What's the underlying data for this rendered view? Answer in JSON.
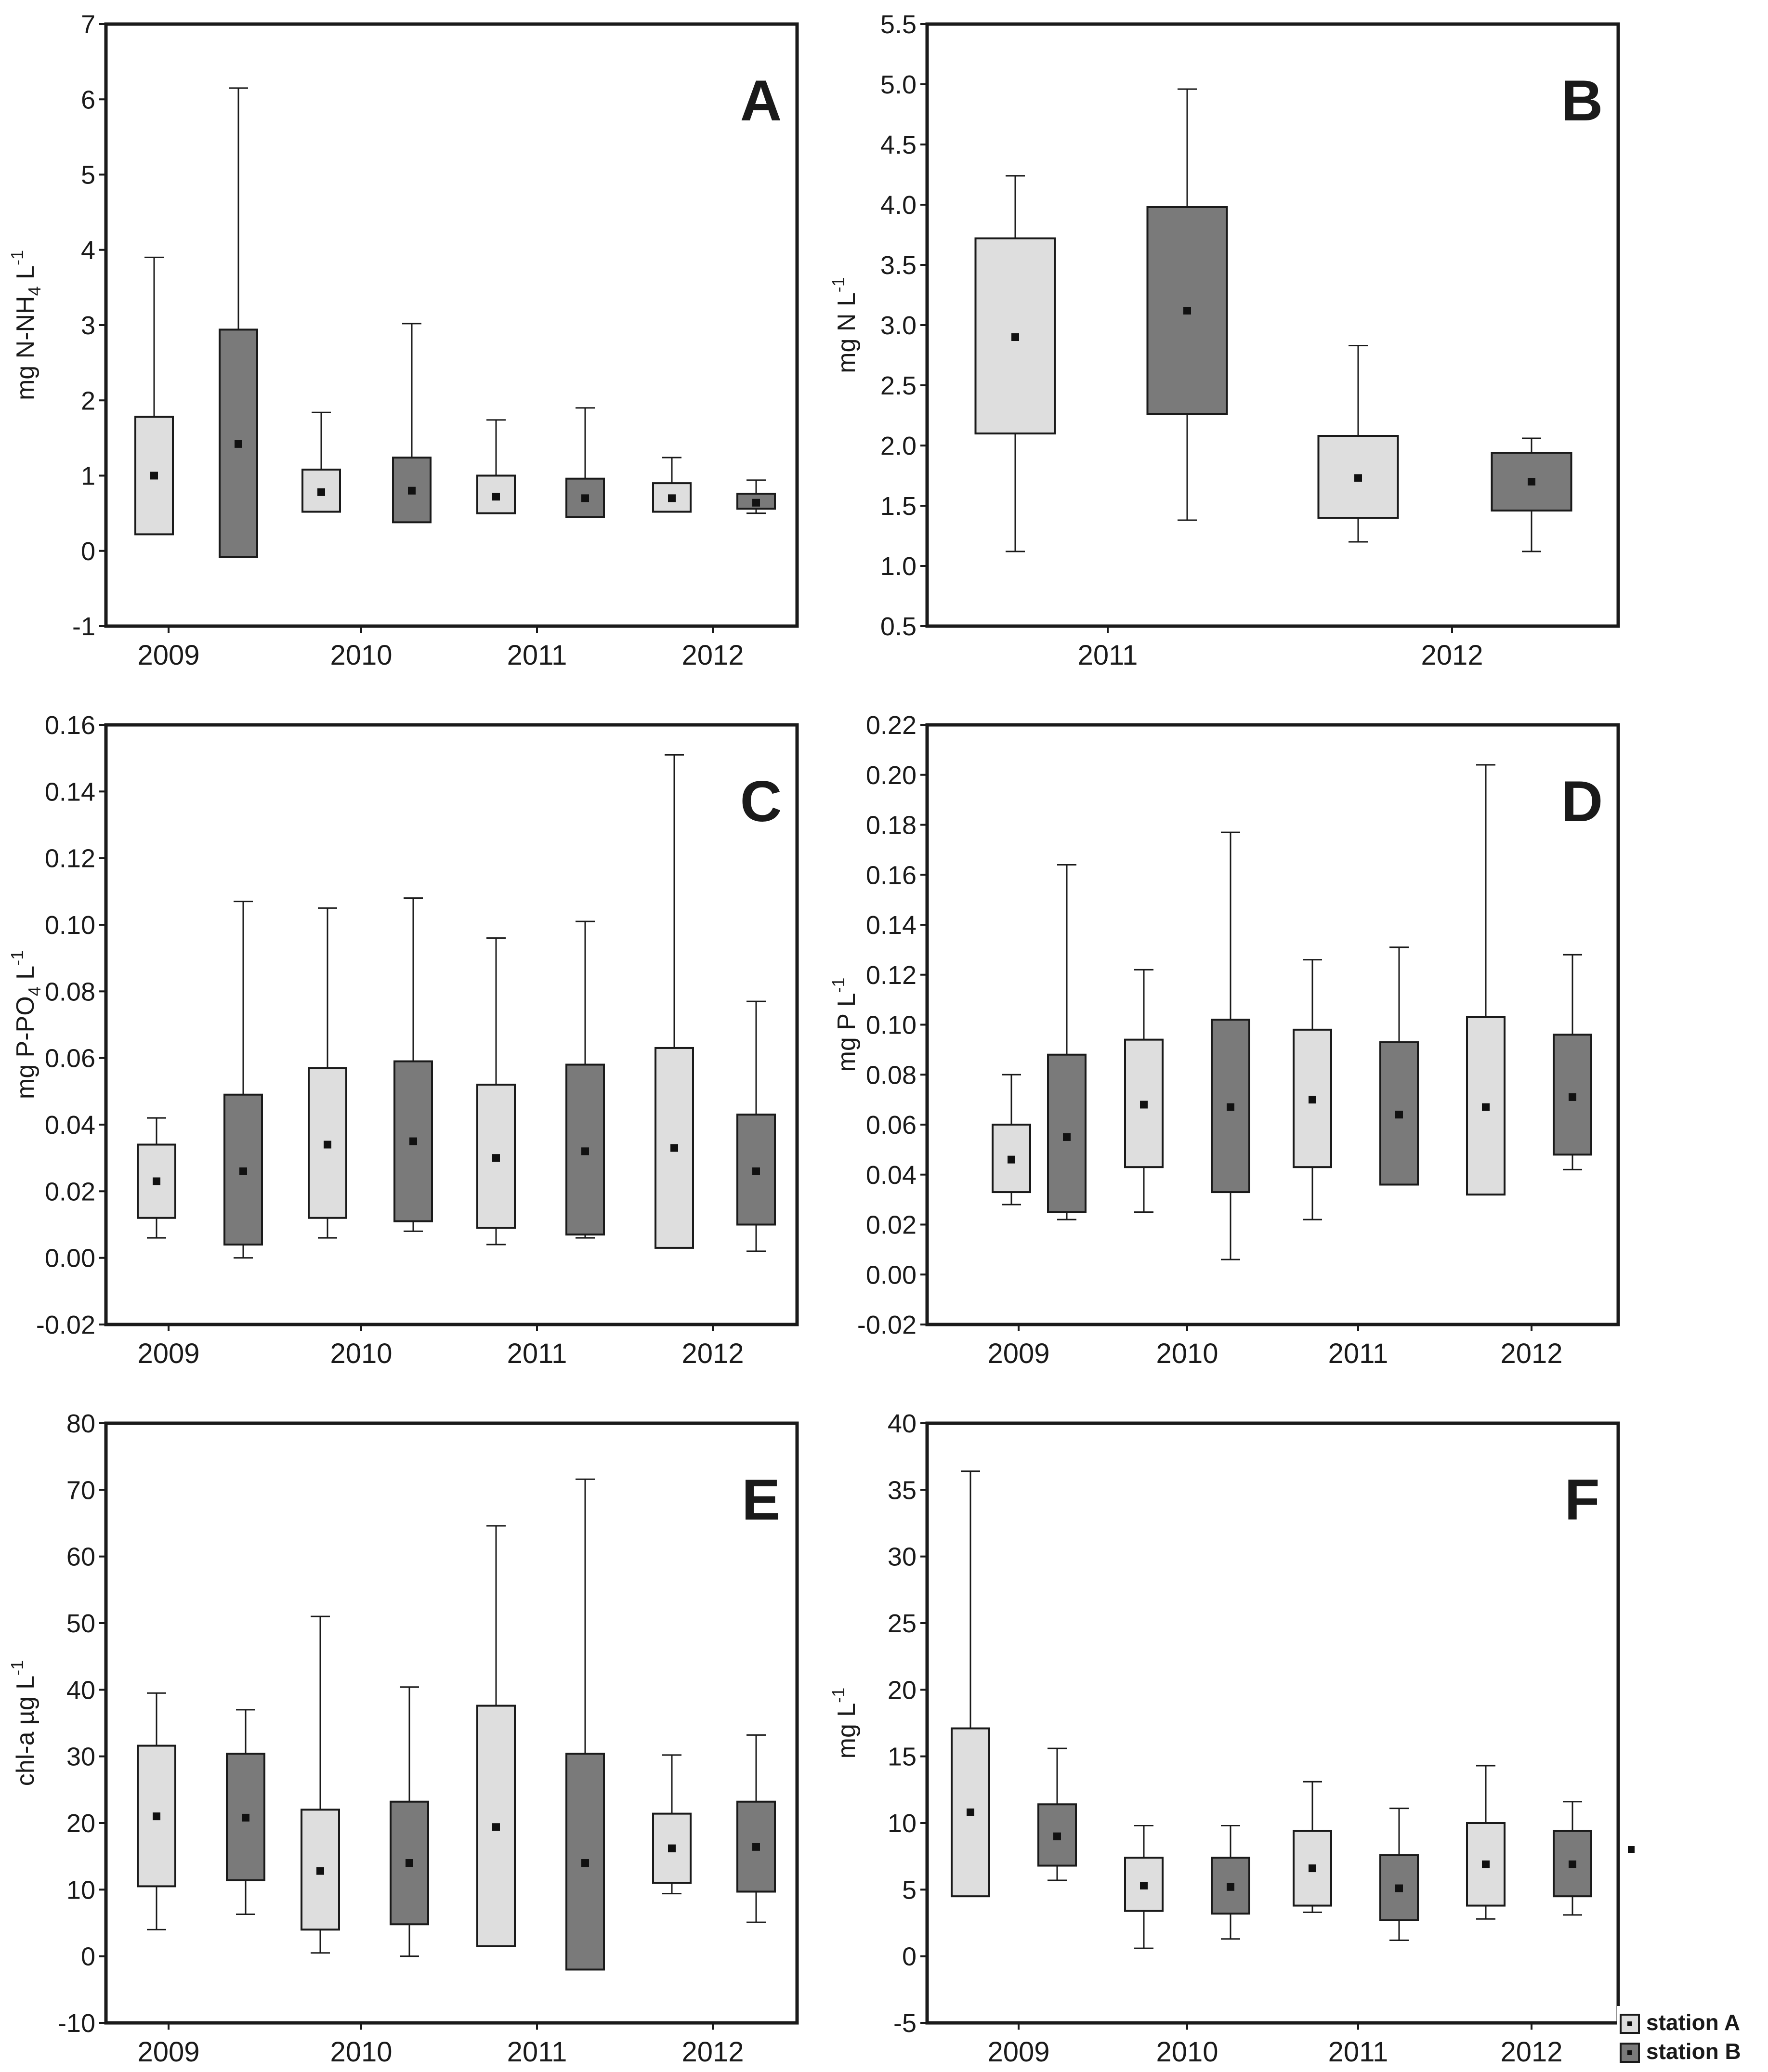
{
  "colors": {
    "station_a": "#dedede",
    "station_b": "#7a7a7a",
    "stroke": "#1a1a1a"
  },
  "legend": {
    "placement": "bottom-right",
    "items": [
      {
        "label": "station A",
        "color": "#dedede"
      },
      {
        "label": "station B",
        "color": "#7a7a7a"
      }
    ]
  },
  "chart_data": [
    {
      "panel": "A",
      "type": "box",
      "ylabel_main": "mg N-NH",
      "ylabel_sub": "4",
      "ylabel_rest": " L",
      "ylabel_sup": "-1",
      "ylim": [
        -1,
        7
      ],
      "yticks": [
        {
          "v": -1,
          "t": "-1"
        },
        {
          "v": 0,
          "t": "0"
        },
        {
          "v": 1,
          "t": "1"
        },
        {
          "v": 2,
          "t": "2"
        },
        {
          "v": 3,
          "t": "3"
        },
        {
          "v": 4,
          "t": "4"
        },
        {
          "v": 5,
          "t": "5"
        },
        {
          "v": 6,
          "t": "6"
        },
        {
          "v": 7,
          "t": "7"
        }
      ],
      "categories": [
        "2009",
        "2010",
        "2011",
        "2012"
      ],
      "series": [
        {
          "station": "A",
          "boxes": [
            {
              "min": 0.22,
              "q1": 0.22,
              "median": 1.0,
              "q3": 1.78,
              "max": 3.9
            },
            {
              "min": 0.52,
              "q1": 0.52,
              "median": 0.78,
              "q3": 1.08,
              "max": 1.84
            },
            {
              "min": 0.5,
              "q1": 0.5,
              "median": 0.72,
              "q3": 1.0,
              "max": 1.74
            },
            {
              "min": 0.52,
              "q1": 0.52,
              "median": 0.7,
              "q3": 0.9,
              "max": 1.24
            }
          ]
        },
        {
          "station": "B",
          "boxes": [
            {
              "min": -0.08,
              "q1": -0.08,
              "median": 1.42,
              "q3": 2.94,
              "max": 6.15
            },
            {
              "min": 0.38,
              "q1": 0.38,
              "median": 0.8,
              "q3": 1.24,
              "max": 3.02
            },
            {
              "min": 0.45,
              "q1": 0.45,
              "median": 0.7,
              "q3": 0.96,
              "max": 1.9
            },
            {
              "min": 0.5,
              "q1": 0.56,
              "median": 0.64,
              "q3": 0.76,
              "max": 0.94
            }
          ]
        }
      ]
    },
    {
      "panel": "B",
      "type": "box",
      "ylabel_main": "mg N L",
      "ylabel_sub": "",
      "ylabel_rest": "",
      "ylabel_sup": "-1",
      "ylim": [
        0.5,
        5.5
      ],
      "yticks": [
        {
          "v": 0.5,
          "t": "0.5"
        },
        {
          "v": 1.0,
          "t": "1.0"
        },
        {
          "v": 1.5,
          "t": "1.5"
        },
        {
          "v": 2.0,
          "t": "2.0"
        },
        {
          "v": 2.5,
          "t": "2.5"
        },
        {
          "v": 3.0,
          "t": "3.0"
        },
        {
          "v": 3.5,
          "t": "3.5"
        },
        {
          "v": 4.0,
          "t": "4.0"
        },
        {
          "v": 4.5,
          "t": "4.5"
        },
        {
          "v": 5.0,
          "t": "5.0"
        },
        {
          "v": 5.5,
          "t": "5.5"
        }
      ],
      "categories": [
        "2011",
        "2012"
      ],
      "series": [
        {
          "station": "A",
          "boxes": [
            {
              "min": 1.12,
              "q1": 2.1,
              "median": 2.9,
              "q3": 3.72,
              "max": 4.24
            },
            {
              "min": 1.2,
              "q1": 1.4,
              "median": 1.73,
              "q3": 2.08,
              "max": 2.83
            }
          ]
        },
        {
          "station": "B",
          "boxes": [
            {
              "min": 1.38,
              "q1": 2.26,
              "median": 3.12,
              "q3": 3.98,
              "max": 4.96
            },
            {
              "min": 1.12,
              "q1": 1.46,
              "median": 1.7,
              "q3": 1.94,
              "max": 2.06
            }
          ]
        }
      ]
    },
    {
      "panel": "C",
      "type": "box",
      "ylabel_main": "mg P-PO",
      "ylabel_sub": "4",
      "ylabel_rest": " L",
      "ylabel_sup": "-1",
      "ylim": [
        -0.02,
        0.16
      ],
      "yticks": [
        {
          "v": -0.02,
          "t": "-0.02"
        },
        {
          "v": 0.0,
          "t": "0.00"
        },
        {
          "v": 0.02,
          "t": "0.02"
        },
        {
          "v": 0.04,
          "t": "0.04"
        },
        {
          "v": 0.06,
          "t": "0.06"
        },
        {
          "v": 0.08,
          "t": "0.08"
        },
        {
          "v": 0.1,
          "t": "0.10"
        },
        {
          "v": 0.12,
          "t": "0.12"
        },
        {
          "v": 0.14,
          "t": "0.14"
        },
        {
          "v": 0.16,
          "t": "0.16"
        }
      ],
      "categories": [
        "2009",
        "2010",
        "2011",
        "2012"
      ],
      "series": [
        {
          "station": "A",
          "boxes": [
            {
              "min": 0.006,
              "q1": 0.012,
              "median": 0.023,
              "q3": 0.034,
              "max": 0.042
            },
            {
              "min": 0.006,
              "q1": 0.012,
              "median": 0.034,
              "q3": 0.057,
              "max": 0.105
            },
            {
              "min": 0.004,
              "q1": 0.009,
              "median": 0.03,
              "q3": 0.052,
              "max": 0.096
            },
            {
              "min": 0.003,
              "q1": 0.003,
              "median": 0.033,
              "q3": 0.063,
              "max": 0.151
            }
          ]
        },
        {
          "station": "B",
          "boxes": [
            {
              "min": 0.0,
              "q1": 0.004,
              "median": 0.026,
              "q3": 0.049,
              "max": 0.107
            },
            {
              "min": 0.008,
              "q1": 0.011,
              "median": 0.035,
              "q3": 0.059,
              "max": 0.108
            },
            {
              "min": 0.006,
              "q1": 0.007,
              "median": 0.032,
              "q3": 0.058,
              "max": 0.101
            },
            {
              "min": 0.002,
              "q1": 0.01,
              "median": 0.026,
              "q3": 0.043,
              "max": 0.077
            }
          ]
        }
      ]
    },
    {
      "panel": "D",
      "type": "box",
      "ylabel_main": "mg P L",
      "ylabel_sub": "",
      "ylabel_rest": "",
      "ylabel_sup": "-1",
      "ylim": [
        -0.02,
        0.22
      ],
      "yticks": [
        {
          "v": -0.02,
          "t": "-0.02"
        },
        {
          "v": 0.0,
          "t": "0.00"
        },
        {
          "v": 0.02,
          "t": "0.02"
        },
        {
          "v": 0.04,
          "t": "0.04"
        },
        {
          "v": 0.06,
          "t": "0.06"
        },
        {
          "v": 0.08,
          "t": "0.08"
        },
        {
          "v": 0.1,
          "t": "0.10"
        },
        {
          "v": 0.12,
          "t": "0.12"
        },
        {
          "v": 0.14,
          "t": "0.14"
        },
        {
          "v": 0.16,
          "t": "0.16"
        },
        {
          "v": 0.18,
          "t": "0.18"
        },
        {
          "v": 0.2,
          "t": "0.20"
        },
        {
          "v": 0.22,
          "t": "0.22"
        }
      ],
      "categories": [
        "2009",
        "2010",
        "2011",
        "2012"
      ],
      "series": [
        {
          "station": "A",
          "boxes": [
            {
              "min": 0.028,
              "q1": 0.033,
              "median": 0.046,
              "q3": 0.06,
              "max": 0.08
            },
            {
              "min": 0.025,
              "q1": 0.043,
              "median": 0.068,
              "q3": 0.094,
              "max": 0.122
            },
            {
              "min": 0.022,
              "q1": 0.043,
              "median": 0.07,
              "q3": 0.098,
              "max": 0.126
            },
            {
              "min": 0.032,
              "q1": 0.032,
              "median": 0.067,
              "q3": 0.103,
              "max": 0.204
            }
          ]
        },
        {
          "station": "B",
          "boxes": [
            {
              "min": 0.022,
              "q1": 0.025,
              "median": 0.055,
              "q3": 0.088,
              "max": 0.164
            },
            {
              "min": 0.006,
              "q1": 0.033,
              "median": 0.067,
              "q3": 0.102,
              "max": 0.177
            },
            {
              "min": 0.036,
              "q1": 0.036,
              "median": 0.064,
              "q3": 0.093,
              "max": 0.131
            },
            {
              "min": 0.042,
              "q1": 0.048,
              "median": 0.071,
              "q3": 0.096,
              "max": 0.128
            }
          ]
        }
      ]
    },
    {
      "panel": "E",
      "type": "box",
      "ylabel_main": "chl-a µg L",
      "ylabel_sub": "",
      "ylabel_rest": "",
      "ylabel_sup": "-1",
      "ylim": [
        -10,
        80
      ],
      "yticks": [
        {
          "v": -10,
          "t": "-10"
        },
        {
          "v": 0,
          "t": "0"
        },
        {
          "v": 10,
          "t": "10"
        },
        {
          "v": 20,
          "t": "20"
        },
        {
          "v": 30,
          "t": "30"
        },
        {
          "v": 40,
          "t": "40"
        },
        {
          "v": 50,
          "t": "50"
        },
        {
          "v": 60,
          "t": "60"
        },
        {
          "v": 70,
          "t": "70"
        },
        {
          "v": 80,
          "t": "80"
        }
      ],
      "categories": [
        "2009",
        "2010",
        "2011",
        "2012"
      ],
      "series": [
        {
          "station": "A",
          "boxes": [
            {
              "min": 4,
              "q1": 10.5,
              "median": 21,
              "q3": 31.6,
              "max": 39.5
            },
            {
              "min": 0.5,
              "q1": 4,
              "median": 12.8,
              "q3": 22,
              "max": 51
            },
            {
              "min": 1.5,
              "q1": 1.5,
              "median": 19.4,
              "q3": 37.6,
              "max": 64.6
            },
            {
              "min": 9.4,
              "q1": 11,
              "median": 16.2,
              "q3": 21.4,
              "max": 30.2
            }
          ]
        },
        {
          "station": "B",
          "boxes": [
            {
              "min": 6.3,
              "q1": 11.4,
              "median": 20.8,
              "q3": 30.4,
              "max": 37
            },
            {
              "min": 0,
              "q1": 4.8,
              "median": 14,
              "q3": 23.2,
              "max": 40.4
            },
            {
              "min": -2,
              "q1": -2,
              "median": 14,
              "q3": 30.4,
              "max": 71.6
            },
            {
              "min": 5.1,
              "q1": 9.7,
              "median": 16.4,
              "q3": 23.2,
              "max": 33.2
            }
          ]
        }
      ]
    },
    {
      "panel": "F",
      "type": "box",
      "ylabel_main": "mg L",
      "ylabel_sub": "",
      "ylabel_rest": "",
      "ylabel_sup": "-1",
      "ylim": [
        -5,
        40
      ],
      "yticks": [
        {
          "v": -5,
          "t": "-5"
        },
        {
          "v": 0,
          "t": "0"
        },
        {
          "v": 5,
          "t": "5"
        },
        {
          "v": 10,
          "t": "10"
        },
        {
          "v": 15,
          "t": "15"
        },
        {
          "v": 20,
          "t": "20"
        },
        {
          "v": 25,
          "t": "25"
        },
        {
          "v": 30,
          "t": "30"
        },
        {
          "v": 35,
          "t": "35"
        },
        {
          "v": 40,
          "t": "40"
        }
      ],
      "categories": [
        "2009",
        "2010",
        "2011",
        "2012"
      ],
      "series": [
        {
          "station": "A",
          "boxes": [
            {
              "min": 4.5,
              "q1": 4.5,
              "median": 10.8,
              "q3": 17.1,
              "max": 36.4
            },
            {
              "min": 0.6,
              "q1": 3.4,
              "median": 5.3,
              "q3": 7.4,
              "max": 9.8
            },
            {
              "min": 3.3,
              "q1": 3.8,
              "median": 6.6,
              "q3": 9.4,
              "max": 13.1
            },
            {
              "min": 2.8,
              "q1": 3.8,
              "median": 6.9,
              "q3": 10,
              "max": 14.3
            }
          ]
        },
        {
          "station": "B",
          "boxes": [
            {
              "min": 5.7,
              "q1": 6.8,
              "median": 9.0,
              "q3": 11.4,
              "max": 15.6
            },
            {
              "min": 1.3,
              "q1": 3.2,
              "median": 5.2,
              "q3": 7.4,
              "max": 9.8
            },
            {
              "min": 1.2,
              "q1": 2.7,
              "median": 5.1,
              "q3": 7.6,
              "max": 11.1
            },
            {
              "min": 3.1,
              "q1": 4.5,
              "median": 6.9,
              "q3": 9.4,
              "max": 11.6
            }
          ]
        }
      ]
    }
  ]
}
